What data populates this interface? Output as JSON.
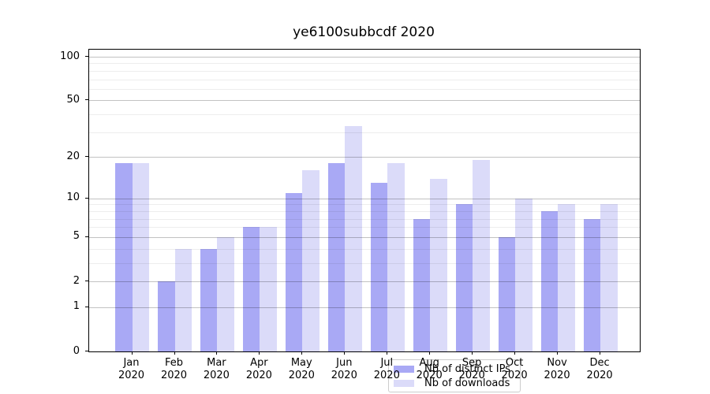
{
  "figure": {
    "title": "ye6100subbcdf 2020",
    "background_color": "#ffffff"
  },
  "chart_data": {
    "type": "bar",
    "title": "ye6100subbcdf 2020",
    "categories": [
      "Jan",
      "Feb",
      "Mar",
      "Apr",
      "May",
      "Jun",
      "Jul",
      "Aug",
      "Sep",
      "Oct",
      "Nov",
      "Dec"
    ],
    "category_year": "2020",
    "series": [
      {
        "name": "Nb of distinct IPs",
        "color": "#a9a9f5",
        "values": [
          18,
          2,
          4,
          6,
          11,
          18,
          13,
          7,
          9,
          5,
          8,
          7
        ]
      },
      {
        "name": "Nb of downloads",
        "color": "#dbdbf9",
        "values": [
          18,
          4,
          5,
          6,
          16,
          33,
          18,
          14,
          19,
          10,
          9,
          9
        ]
      }
    ],
    "yscale": "log1p",
    "ylim": [
      0,
      110
    ],
    "yticks": [
      100,
      50,
      20,
      10,
      5,
      2,
      1,
      0
    ],
    "yticks_minor": [
      3,
      4,
      6,
      7,
      8,
      9,
      30,
      40,
      60,
      70,
      80,
      90
    ],
    "xlabel": "",
    "ylabel": "",
    "grid": true,
    "grid_above_bars": true,
    "legend_position": "lower center"
  }
}
